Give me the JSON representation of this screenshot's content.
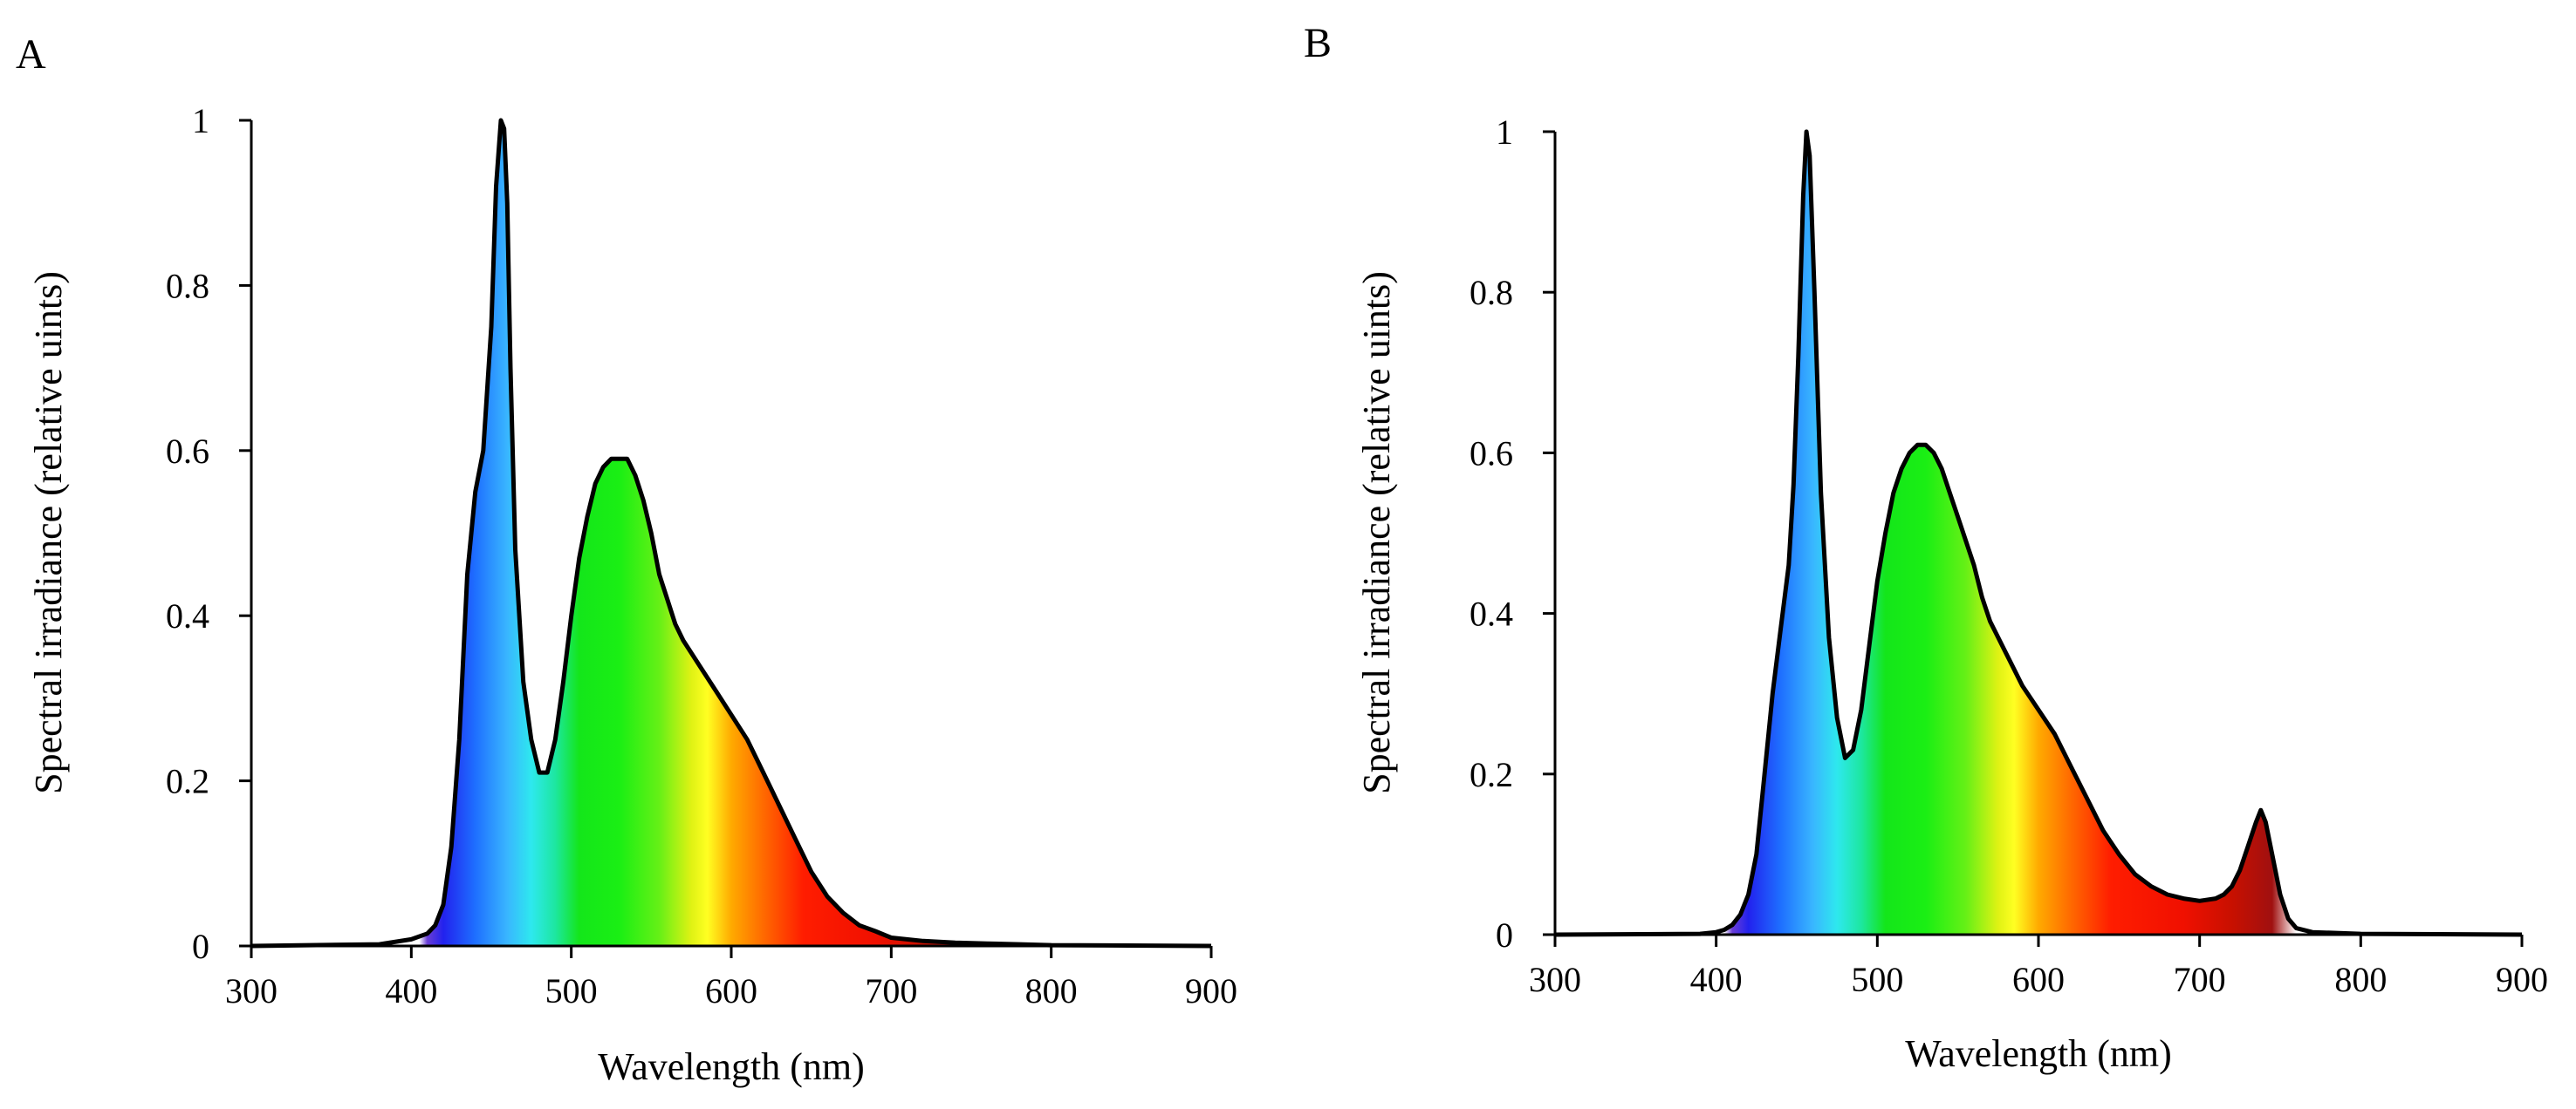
{
  "chart_data": [
    {
      "panel": "A",
      "type": "area",
      "xlabel": "Wavelength (nm)",
      "ylabel": "Spectral irradiance (relative uints)",
      "xlim": [
        300,
        900
      ],
      "ylim": [
        0,
        1
      ],
      "xticks": [
        300,
        400,
        500,
        600,
        700,
        800,
        900
      ],
      "yticks": [
        0,
        0.2,
        0.4,
        0.6,
        0.8,
        1
      ],
      "ytick_labels": [
        "0",
        "0.2",
        "0.4",
        "0.6",
        "0.8",
        "1"
      ],
      "x": [
        300,
        380,
        400,
        410,
        415,
        420,
        425,
        430,
        435,
        440,
        445,
        450,
        453,
        456,
        458,
        460,
        462,
        465,
        470,
        475,
        480,
        485,
        490,
        495,
        500,
        505,
        510,
        515,
        520,
        525,
        530,
        535,
        540,
        545,
        550,
        555,
        560,
        565,
        570,
        580,
        590,
        600,
        610,
        620,
        630,
        640,
        650,
        660,
        670,
        680,
        690,
        700,
        720,
        740,
        760,
        780,
        800,
        900
      ],
      "y": [
        0,
        0.002,
        0.008,
        0.015,
        0.025,
        0.05,
        0.12,
        0.25,
        0.45,
        0.55,
        0.6,
        0.75,
        0.92,
        1.0,
        0.99,
        0.9,
        0.7,
        0.48,
        0.32,
        0.25,
        0.21,
        0.21,
        0.25,
        0.32,
        0.4,
        0.47,
        0.52,
        0.56,
        0.58,
        0.59,
        0.59,
        0.59,
        0.57,
        0.54,
        0.5,
        0.45,
        0.42,
        0.39,
        0.37,
        0.34,
        0.31,
        0.28,
        0.25,
        0.21,
        0.17,
        0.13,
        0.09,
        0.06,
        0.04,
        0.025,
        0.018,
        0.01,
        0.006,
        0.004,
        0.003,
        0.002,
        0.001,
        0
      ]
    },
    {
      "panel": "B",
      "type": "area",
      "xlabel": "Wavelength (nm)",
      "ylabel": "Spectral irradiance (relative uints)",
      "xlim": [
        300,
        900
      ],
      "ylim": [
        0,
        1
      ],
      "xticks": [
        300,
        400,
        500,
        600,
        700,
        800,
        900
      ],
      "yticks": [
        0,
        0.2,
        0.4,
        0.6,
        0.8,
        1
      ],
      "ytick_labels": [
        "0",
        "0.2",
        "0.4",
        "0.6",
        "0.8",
        "1"
      ],
      "x": [
        300,
        390,
        400,
        405,
        410,
        415,
        420,
        425,
        430,
        435,
        440,
        445,
        448,
        451,
        454,
        456,
        458,
        461,
        465,
        470,
        475,
        480,
        485,
        490,
        495,
        500,
        505,
        510,
        515,
        520,
        525,
        530,
        535,
        540,
        545,
        550,
        555,
        560,
        565,
        570,
        580,
        590,
        600,
        610,
        620,
        630,
        640,
        650,
        660,
        670,
        680,
        690,
        700,
        710,
        715,
        720,
        725,
        730,
        735,
        738,
        741,
        745,
        750,
        755,
        760,
        770,
        800,
        900
      ],
      "y": [
        0,
        0.001,
        0.003,
        0.006,
        0.012,
        0.025,
        0.05,
        0.1,
        0.2,
        0.3,
        0.38,
        0.46,
        0.56,
        0.72,
        0.92,
        1.0,
        0.97,
        0.8,
        0.55,
        0.37,
        0.27,
        0.22,
        0.23,
        0.28,
        0.36,
        0.44,
        0.5,
        0.55,
        0.58,
        0.6,
        0.61,
        0.61,
        0.6,
        0.58,
        0.55,
        0.52,
        0.49,
        0.46,
        0.42,
        0.39,
        0.35,
        0.31,
        0.28,
        0.25,
        0.21,
        0.17,
        0.13,
        0.1,
        0.075,
        0.06,
        0.05,
        0.045,
        0.042,
        0.045,
        0.05,
        0.06,
        0.08,
        0.11,
        0.14,
        0.155,
        0.14,
        0.1,
        0.05,
        0.02,
        0.008,
        0.003,
        0.001,
        0
      ]
    }
  ]
}
